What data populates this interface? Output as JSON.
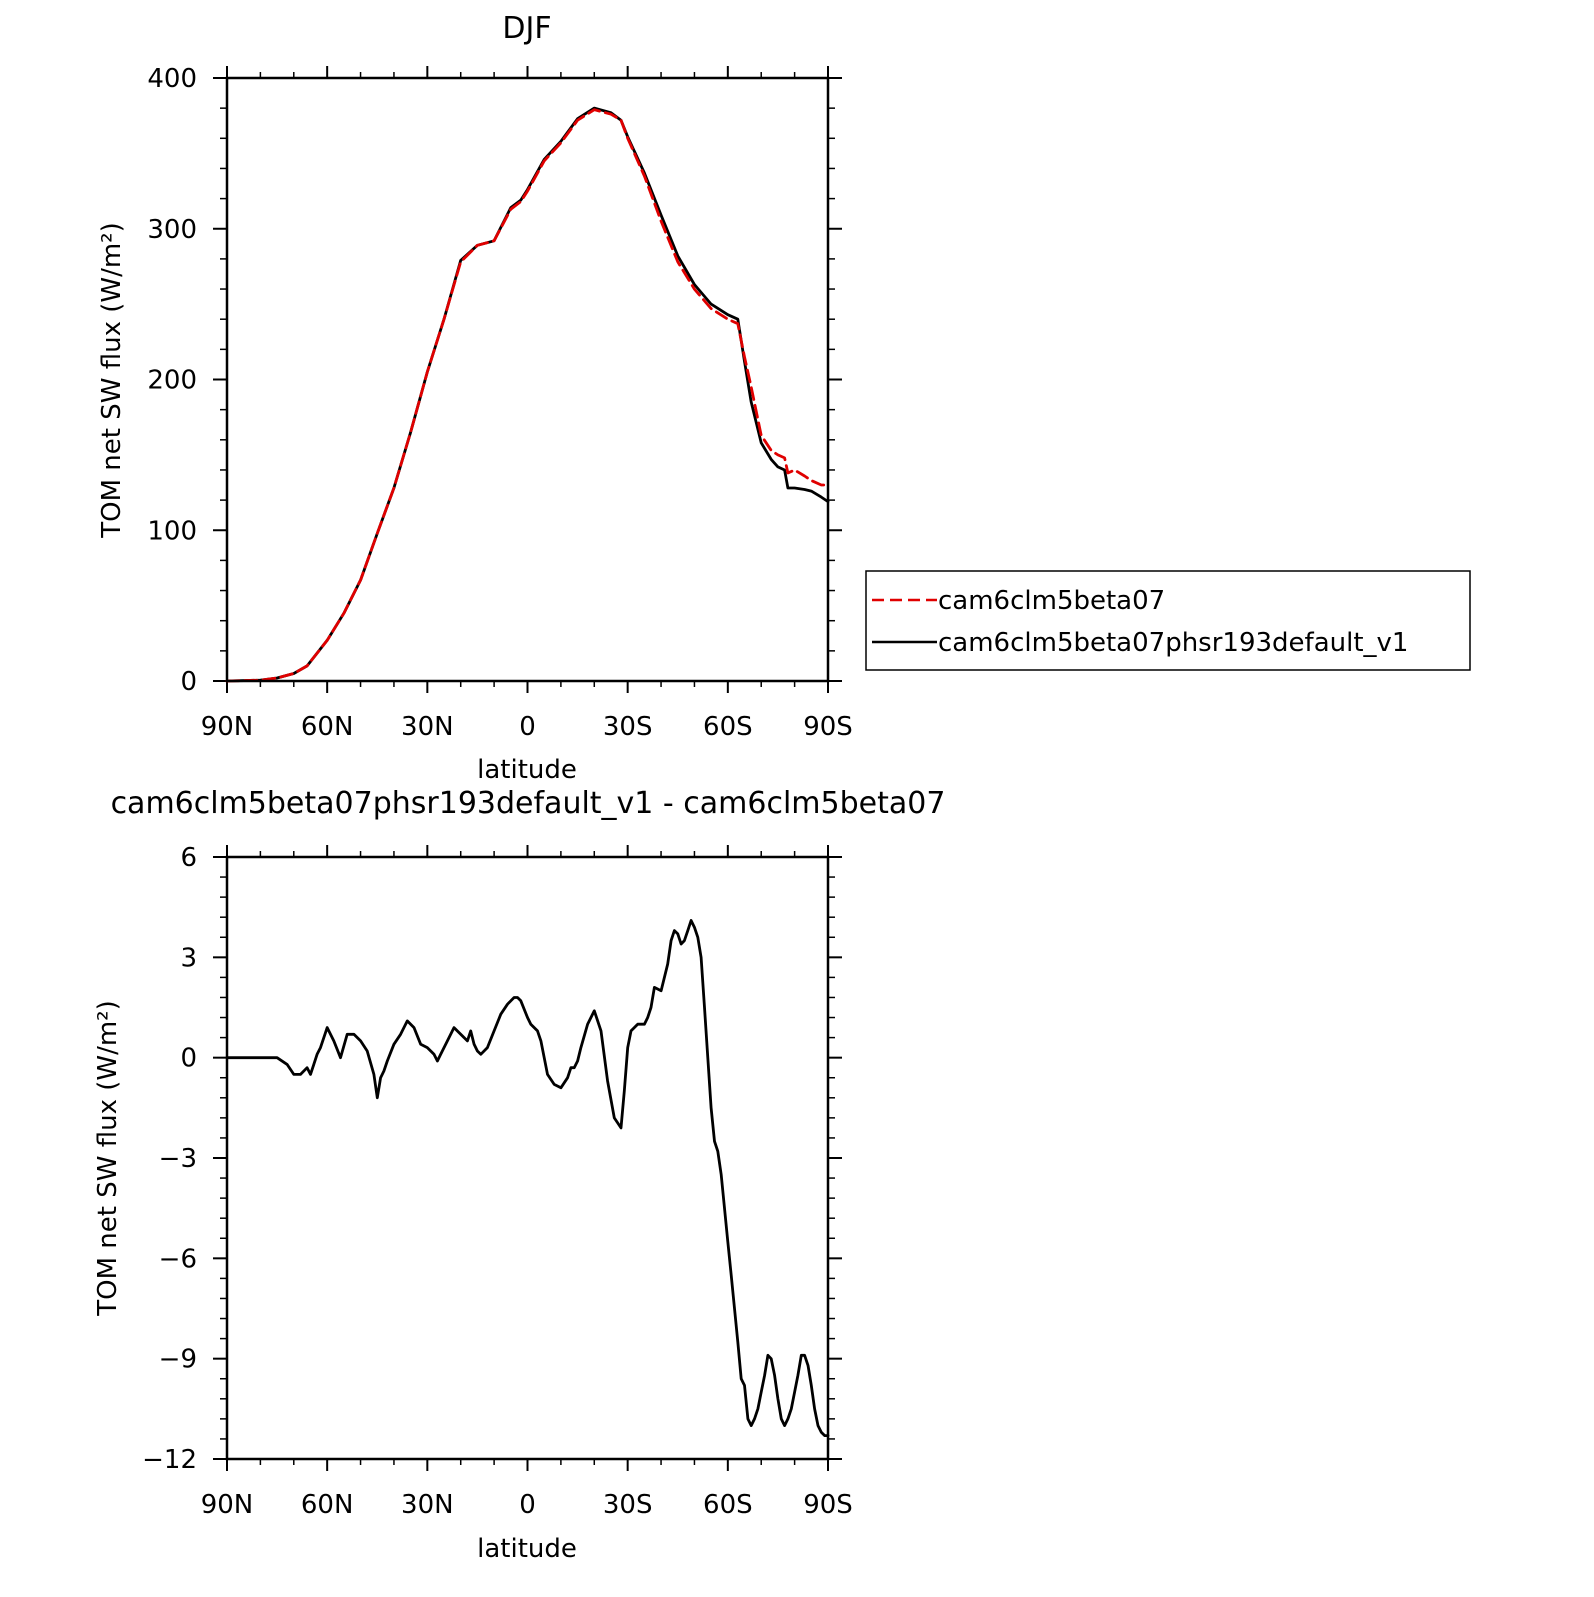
{
  "chart_data": [
    {
      "type": "line",
      "title": "DJF",
      "xlabel": "latitude",
      "ylabel": "TOM net SW flux (W/m²)",
      "xlim": [
        90,
        -90
      ],
      "ylim": [
        0,
        400
      ],
      "x_tick_values": [
        90,
        60,
        30,
        0,
        -30,
        -60,
        -90
      ],
      "x_tick_labels": [
        "90N",
        "60N",
        "30N",
        "0",
        "30S",
        "60S",
        "90S"
      ],
      "y_tick_values": [
        0,
        100,
        200,
        300,
        400
      ],
      "y_tick_labels": [
        "0",
        "100",
        "200",
        "300",
        "400"
      ],
      "legend_position": "right",
      "series": [
        {
          "name": "cam6clm5beta07",
          "color": "#e00000",
          "dash": "dashed",
          "x": [
            90,
            80,
            75,
            70,
            66,
            60,
            55,
            50,
            45,
            40,
            35,
            30,
            25,
            20,
            15,
            10,
            5,
            2,
            0,
            -5,
            -10,
            -15,
            -20,
            -25,
            -28,
            -30,
            -35,
            -40,
            -45,
            -50,
            -55,
            -60,
            -63,
            -65,
            -67,
            -70,
            -73,
            -75,
            -77,
            -78,
            -80,
            -83,
            -85,
            -88,
            -90
          ],
          "values": [
            0,
            0.5,
            2,
            5,
            10,
            27,
            45,
            67,
            98,
            128,
            165,
            205,
            240,
            278,
            289,
            292,
            313,
            318,
            325,
            345,
            357,
            372,
            379,
            376,
            372,
            360,
            335,
            305,
            278,
            260,
            247,
            240,
            237,
            215,
            195,
            163,
            153,
            150,
            148,
            138,
            140,
            136,
            133,
            130,
            130
          ]
        },
        {
          "name": "cam6clm5beta07phsr193default_v1",
          "color": "#000000",
          "dash": "solid",
          "x": [
            90,
            80,
            75,
            70,
            66,
            60,
            55,
            50,
            45,
            40,
            35,
            30,
            25,
            20,
            15,
            10,
            5,
            2,
            0,
            -5,
            -10,
            -15,
            -20,
            -25,
            -28,
            -30,
            -35,
            -40,
            -45,
            -50,
            -55,
            -60,
            -63,
            -65,
            -67,
            -70,
            -73,
            -75,
            -77,
            -78,
            -80,
            -83,
            -85,
            -88,
            -90
          ],
          "values": [
            0,
            0.5,
            2,
            5,
            10,
            27,
            45,
            67,
            98,
            128,
            165,
            205,
            240,
            279,
            289,
            292,
            314,
            319,
            326,
            346,
            358,
            373,
            380,
            377,
            372,
            361,
            337,
            309,
            282,
            263,
            250,
            243,
            240,
            212,
            185,
            158,
            147,
            142,
            140,
            128,
            128,
            127,
            126,
            122,
            119
          ]
        }
      ]
    },
    {
      "type": "line",
      "title": "cam6clm5beta07phsr193default_v1 - cam6clm5beta07",
      "xlabel": "latitude",
      "ylabel": "TOM net SW flux (W/m²)",
      "xlim": [
        90,
        -90
      ],
      "ylim": [
        -12,
        6
      ],
      "x_tick_values": [
        90,
        60,
        30,
        0,
        -30,
        -60,
        -90
      ],
      "x_tick_labels": [
        "90N",
        "60N",
        "30N",
        "0",
        "30S",
        "60S",
        "90S"
      ],
      "y_tick_values": [
        6,
        3,
        0,
        -3,
        -6,
        -9,
        -12
      ],
      "y_tick_labels": [
        "6",
        "3",
        "0",
        "−3",
        "−6",
        "−9",
        "−12"
      ],
      "series": [
        {
          "color": "#000000",
          "dash": "solid",
          "x": [
            90,
            75,
            72,
            70,
            68,
            66,
            65,
            64,
            63,
            62,
            60,
            58,
            56,
            54,
            52,
            50,
            48,
            46,
            45,
            44,
            43,
            42,
            40,
            38,
            36,
            34,
            32,
            30,
            28,
            27,
            26,
            24,
            22,
            20,
            18,
            17,
            16,
            15,
            14,
            12,
            10,
            8,
            6,
            4,
            3,
            2,
            0,
            -1,
            -2,
            -3,
            -4,
            -6,
            -8,
            -10,
            -12,
            -13,
            -14,
            -15,
            -16,
            -18,
            -20,
            -22,
            -24,
            -26,
            -28,
            -29,
            -30,
            -31,
            -32,
            -33,
            -34,
            -35,
            -36,
            -37,
            -38,
            -40,
            -42,
            -43,
            -44,
            -45,
            -46,
            -47,
            -48,
            -49,
            -50,
            -51,
            -52,
            -53,
            -54,
            -55,
            -56,
            -57,
            -58,
            -60,
            -61,
            -62,
            -63,
            -64,
            -65,
            -66,
            -67,
            -68,
            -69,
            -70,
            -71,
            -72,
            -73,
            -74,
            -75,
            -76,
            -77,
            -78,
            -79,
            -80,
            -81,
            -82,
            -83,
            -84,
            -85,
            -86,
            -87,
            -88,
            -89,
            -90
          ],
          "values": [
            0,
            0,
            -0.2,
            -0.5,
            -0.5,
            -0.3,
            -0.5,
            -0.2,
            0.1,
            0.3,
            0.9,
            0.5,
            0,
            0.7,
            0.7,
            0.5,
            0.2,
            -0.5,
            -1.2,
            -0.6,
            -0.4,
            -0.1,
            0.4,
            0.7,
            1.1,
            0.9,
            0.4,
            0.3,
            0.1,
            -0.1,
            0.1,
            0.5,
            0.9,
            0.7,
            0.5,
            0.8,
            0.4,
            0.2,
            0.1,
            0.3,
            0.8,
            1.3,
            1.6,
            1.8,
            1.8,
            1.7,
            1.2,
            1.0,
            0.9,
            0.8,
            0.5,
            -0.5,
            -0.8,
            -0.9,
            -0.6,
            -0.3,
            -0.3,
            -0.1,
            0.3,
            1.0,
            1.4,
            0.8,
            -0.7,
            -1.8,
            -2.1,
            -1.0,
            0.3,
            0.8,
            0.9,
            1.0,
            1.0,
            1.0,
            1.2,
            1.5,
            2.1,
            2.0,
            2.8,
            3.5,
            3.8,
            3.7,
            3.4,
            3.5,
            3.8,
            4.1,
            3.9,
            3.6,
            3.0,
            1.5,
            0.0,
            -1.5,
            -2.5,
            -2.8,
            -3.5,
            -5.5,
            -6.5,
            -7.5,
            -8.5,
            -9.6,
            -9.8,
            -10.8,
            -11.0,
            -10.8,
            -10.5,
            -10.0,
            -9.5,
            -8.9,
            -9.0,
            -9.5,
            -10.2,
            -10.8,
            -11.0,
            -10.8,
            -10.5,
            -10.0,
            -9.5,
            -8.9,
            -8.9,
            -9.2,
            -9.8,
            -10.5,
            -11.0,
            -11.2,
            -11.3,
            -11.3
          ]
        }
      ]
    }
  ]
}
